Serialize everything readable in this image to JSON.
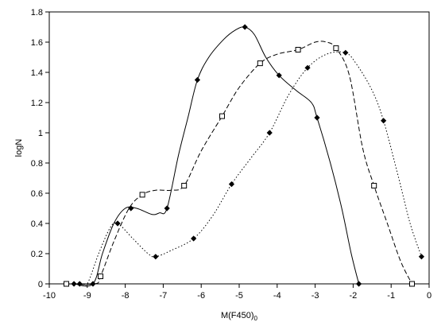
{
  "chart_data": {
    "type": "line",
    "xlabel": "M(F450)",
    "xlabel_subscript": "0",
    "ylabel": "logN",
    "xlim": [
      -10,
      0
    ],
    "ylim": [
      0,
      1.8
    ],
    "xticks": [
      -10,
      -9,
      -8,
      -7,
      -6,
      -5,
      -4,
      -3,
      -2,
      -1,
      0
    ],
    "yticks": [
      0,
      0.2,
      0.4,
      0.6,
      0.8,
      1,
      1.2,
      1.4,
      1.6,
      1.8
    ],
    "ytick_labels": [
      "0",
      "0.2",
      "0.4",
      "0.6",
      "0.8",
      "1",
      "1.2",
      "1.4",
      "1.6",
      "1.8"
    ],
    "grid": false,
    "series": [
      {
        "line_style": "solid",
        "marker": "filled-diamond",
        "points": [
          [
            -9.35,
            0
          ],
          [
            -8.85,
            0
          ],
          [
            -7.85,
            0.5
          ],
          [
            -6.9,
            0.5
          ],
          [
            -6.1,
            1.35
          ],
          [
            -4.85,
            1.7
          ],
          [
            -3.95,
            1.38
          ],
          [
            -2.95,
            1.1
          ],
          [
            -1.85,
            0
          ]
        ],
        "curve": [
          [
            -9.35,
            0
          ],
          [
            -8.85,
            0
          ],
          [
            -8.6,
            0.2
          ],
          [
            -8.3,
            0.4
          ],
          [
            -8.0,
            0.5
          ],
          [
            -7.7,
            0.5
          ],
          [
            -7.3,
            0.46
          ],
          [
            -7.1,
            0.47
          ],
          [
            -6.9,
            0.5
          ],
          [
            -6.6,
            0.85
          ],
          [
            -6.35,
            1.1
          ],
          [
            -6.1,
            1.35
          ],
          [
            -5.8,
            1.5
          ],
          [
            -5.4,
            1.62
          ],
          [
            -5.1,
            1.68
          ],
          [
            -4.85,
            1.7
          ],
          [
            -4.6,
            1.65
          ],
          [
            -4.3,
            1.5
          ],
          [
            -3.95,
            1.38
          ],
          [
            -3.5,
            1.28
          ],
          [
            -3.1,
            1.2
          ],
          [
            -2.95,
            1.1
          ],
          [
            -2.6,
            0.8
          ],
          [
            -2.3,
            0.5
          ],
          [
            -2.05,
            0.2
          ],
          [
            -1.85,
            0
          ]
        ]
      },
      {
        "line_style": "dashed",
        "marker": "open-square",
        "points": [
          [
            -9.55,
            0
          ],
          [
            -8.65,
            0.05
          ],
          [
            -7.55,
            0.59
          ],
          [
            -6.45,
            0.65
          ],
          [
            -5.45,
            1.11
          ],
          [
            -4.45,
            1.46
          ],
          [
            -3.45,
            1.55
          ],
          [
            -2.45,
            1.56
          ],
          [
            -1.45,
            0.65
          ],
          [
            -0.45,
            0
          ]
        ],
        "curve": [
          [
            -9.55,
            0
          ],
          [
            -8.8,
            0
          ],
          [
            -8.65,
            0.05
          ],
          [
            -8.3,
            0.28
          ],
          [
            -7.9,
            0.5
          ],
          [
            -7.55,
            0.59
          ],
          [
            -7.2,
            0.62
          ],
          [
            -6.8,
            0.62
          ],
          [
            -6.45,
            0.65
          ],
          [
            -6.0,
            0.88
          ],
          [
            -5.45,
            1.11
          ],
          [
            -5.0,
            1.3
          ],
          [
            -4.45,
            1.46
          ],
          [
            -4.0,
            1.52
          ],
          [
            -3.45,
            1.55
          ],
          [
            -3.0,
            1.6
          ],
          [
            -2.7,
            1.6
          ],
          [
            -2.45,
            1.56
          ],
          [
            -2.1,
            1.38
          ],
          [
            -1.75,
            0.9
          ],
          [
            -1.45,
            0.65
          ],
          [
            -1.1,
            0.4
          ],
          [
            -0.75,
            0.15
          ],
          [
            -0.45,
            0
          ]
        ]
      },
      {
        "line_style": "dotted",
        "marker": "filled-diamond",
        "points": [
          [
            -9.2,
            0
          ],
          [
            -8.2,
            0.4
          ],
          [
            -7.2,
            0.18
          ],
          [
            -6.2,
            0.3
          ],
          [
            -5.2,
            0.66
          ],
          [
            -4.2,
            1.0
          ],
          [
            -3.2,
            1.43
          ],
          [
            -2.2,
            1.53
          ],
          [
            -1.2,
            1.08
          ],
          [
            -0.2,
            0.18
          ]
        ],
        "curve": [
          [
            -9.2,
            0
          ],
          [
            -9.0,
            0.0
          ],
          [
            -8.7,
            0.2
          ],
          [
            -8.4,
            0.37
          ],
          [
            -8.2,
            0.4
          ],
          [
            -7.8,
            0.3
          ],
          [
            -7.4,
            0.2
          ],
          [
            -7.2,
            0.18
          ],
          [
            -6.8,
            0.22
          ],
          [
            -6.2,
            0.3
          ],
          [
            -5.7,
            0.45
          ],
          [
            -5.2,
            0.66
          ],
          [
            -4.7,
            0.83
          ],
          [
            -4.2,
            1.0
          ],
          [
            -3.7,
            1.25
          ],
          [
            -3.2,
            1.43
          ],
          [
            -2.7,
            1.52
          ],
          [
            -2.2,
            1.53
          ],
          [
            -1.9,
            1.45
          ],
          [
            -1.5,
            1.28
          ],
          [
            -1.2,
            1.08
          ],
          [
            -0.8,
            0.7
          ],
          [
            -0.5,
            0.4
          ],
          [
            -0.2,
            0.18
          ]
        ]
      }
    ]
  }
}
